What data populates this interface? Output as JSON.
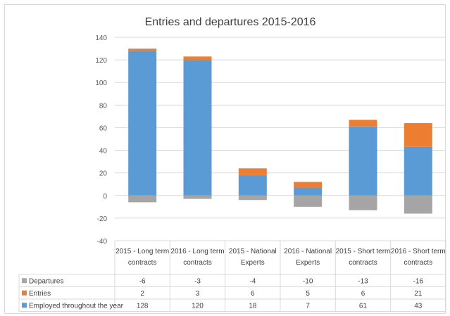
{
  "chart_data": {
    "type": "bar",
    "stacked": true,
    "title": "Entries and departures 2015-2016",
    "categories": [
      [
        "2015 - Long term",
        "contracts"
      ],
      [
        "2016 - Long term",
        "contracts"
      ],
      [
        "2015 - National",
        "Experts"
      ],
      [
        "2016 - National",
        "Experts"
      ],
      [
        "2015 - Short term",
        "contracts"
      ],
      [
        "2016 - Short term",
        "contracts"
      ]
    ],
    "series": [
      {
        "name": "Departures",
        "color": "#a5a5a5",
        "values": [
          -6,
          -3,
          -4,
          -10,
          -13,
          -16
        ]
      },
      {
        "name": "Entries",
        "color": "#ed7d31",
        "values": [
          2,
          3,
          6,
          5,
          6,
          21
        ]
      },
      {
        "name": "Employed throughout the year",
        "color": "#5b9bd5",
        "values": [
          128,
          120,
          18,
          7,
          61,
          43
        ]
      }
    ],
    "y_ticks": [
      140,
      120,
      100,
      80,
      60,
      40,
      20,
      0,
      -20,
      -40
    ],
    "ylim": [
      -40,
      140
    ],
    "grid": true,
    "legend": "data-table"
  }
}
